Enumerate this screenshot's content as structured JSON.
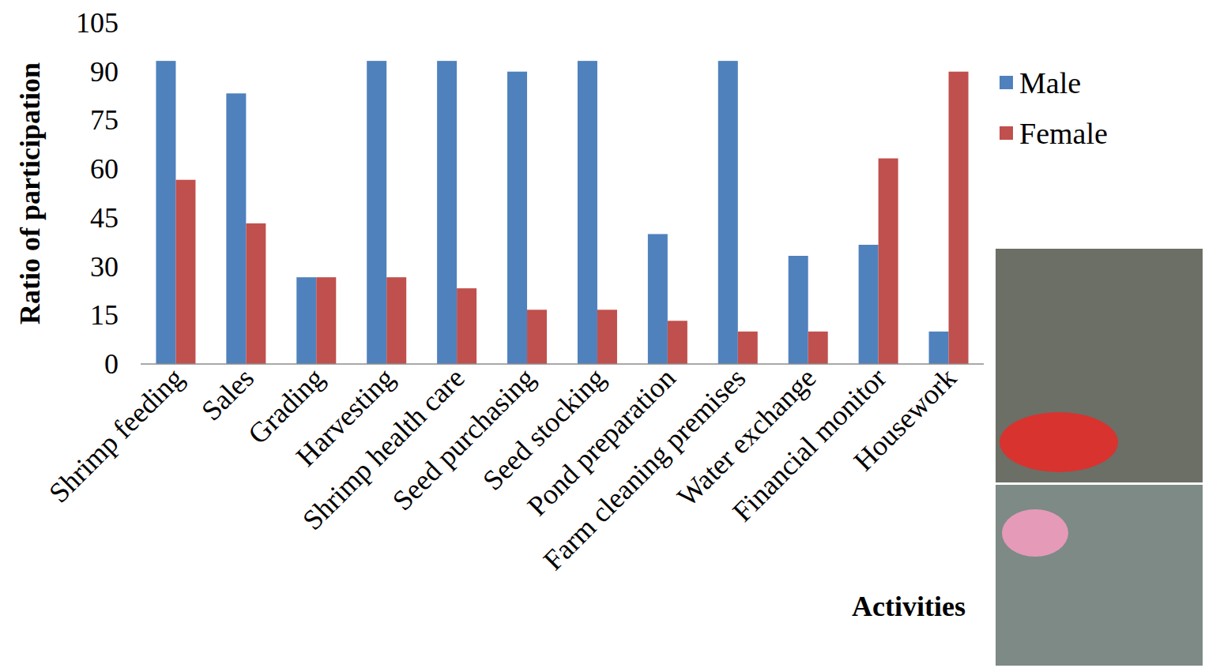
{
  "chart_data": {
    "type": "bar",
    "x_label": "Activities",
    "y_label": "Ratio of participation",
    "categories": [
      "Shrimp feeding",
      "Sales",
      "Grading",
      "Harvesting",
      "Shrimp health care",
      "Seed purchasing",
      "Seed stocking",
      "Pond preparation",
      "Farm cleaning premises",
      "Water exchange",
      "Financial monitor",
      "Housework"
    ],
    "series": [
      {
        "name": "Male",
        "color": "#4f81bd",
        "values": [
          93.3,
          83.3,
          26.7,
          93.3,
          93.3,
          90,
          93.3,
          40,
          93.3,
          33.3,
          36.7,
          10
        ]
      },
      {
        "name": "Female",
        "color": "#c0504d",
        "values": [
          56.7,
          43.3,
          26.7,
          26.7,
          23.3,
          16.7,
          16.7,
          13.3,
          10,
          10,
          63.3,
          90
        ]
      }
    ],
    "ylim": [
      0,
      105
    ],
    "yticks": [
      0,
      15,
      30,
      45,
      60,
      75,
      90,
      105
    ],
    "grid": false,
    "legend": "top-right"
  }
}
